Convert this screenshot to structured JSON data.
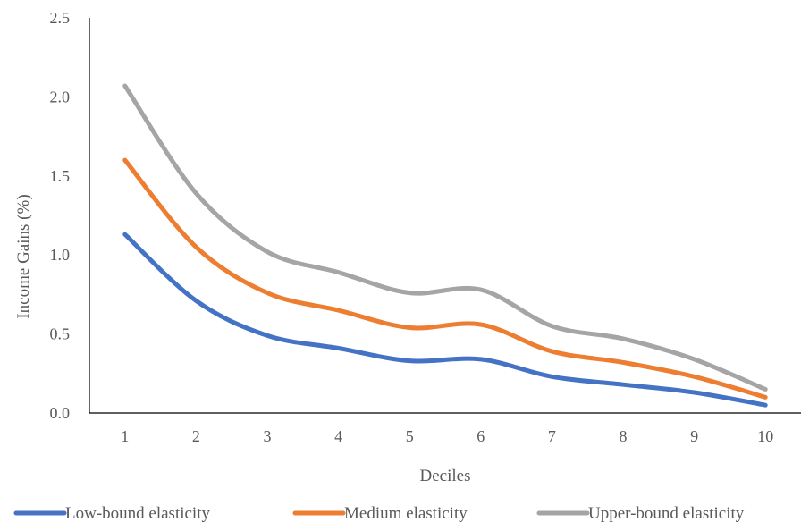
{
  "chart_data": {
    "type": "line",
    "title": "",
    "xlabel": "Deciles",
    "ylabel": "Income Gains (%)",
    "categories": [
      "1",
      "2",
      "3",
      "4",
      "5",
      "6",
      "7",
      "8",
      "9",
      "10"
    ],
    "y_ticks": [
      "0.0",
      "0.5",
      "1.0",
      "1.5",
      "2.0",
      "2.5"
    ],
    "ylim": [
      0,
      2.5
    ],
    "grid": false,
    "legend_position": "bottom",
    "series": [
      {
        "name": "Low-bound elasticity",
        "color": "#4472C4",
        "values": [
          1.13,
          0.71,
          0.49,
          0.41,
          0.33,
          0.34,
          0.23,
          0.18,
          0.13,
          0.05
        ]
      },
      {
        "name": "Medium elasticity",
        "color": "#ED7D31",
        "values": [
          1.6,
          1.05,
          0.76,
          0.65,
          0.54,
          0.56,
          0.39,
          0.32,
          0.23,
          0.1
        ]
      },
      {
        "name": "Upper-bound elasticity",
        "color": "#A5A5A5",
        "values": [
          2.07,
          1.39,
          1.02,
          0.89,
          0.76,
          0.78,
          0.55,
          0.47,
          0.34,
          0.15
        ]
      }
    ]
  }
}
